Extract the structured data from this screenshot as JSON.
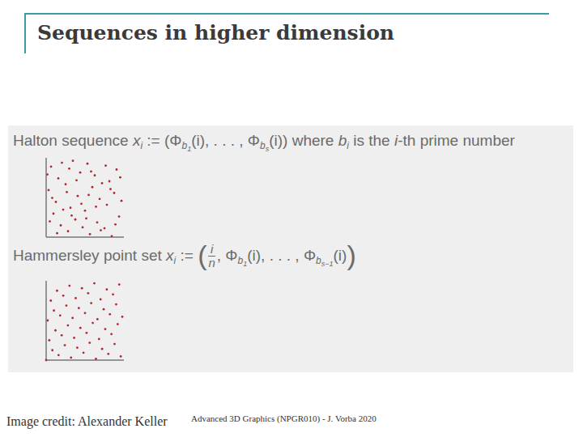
{
  "slide": {
    "title": "Sequences in higher dimension",
    "formulas": [
      {
        "tokens": [
          {
            "text": "Halton sequence "
          },
          {
            "text": "x",
            "italic": true,
            "sub": "i"
          },
          {
            "text": " :="
          },
          {
            "text": " (Φ",
            "sub": "b",
            "sub2": "1"
          },
          {
            "text": "(i), . . . , Φ",
            "sub": "b",
            "sub2": "s"
          },
          {
            "text": "(i))"
          },
          {
            "text": " where "
          },
          {
            "text": "b",
            "italic": true,
            "sub": "i"
          },
          {
            "text": " is the "
          },
          {
            "text": "i",
            "italic": true
          },
          {
            "text": "-th prime number"
          }
        ]
      },
      {
        "tokens": [
          {
            "text": "Hammersley point set "
          },
          {
            "text": "x",
            "italic": true,
            "sub": "i"
          },
          {
            "text": " := "
          },
          {
            "text": "(",
            "big": true
          },
          {
            "num": "i",
            "den": "n"
          },
          {
            "text": ", Φ",
            "sub": "b",
            "sub2": "1"
          },
          {
            "text": "(i), . . . , Φ",
            "sub": "b",
            "sub2": "s−1"
          },
          {
            "text": "(i)"
          },
          {
            "text": ")",
            "big": true
          }
        ]
      }
    ],
    "credit": "Image credit: Alexander Keller",
    "footer": "Advanced 3D Graphics (NPGR010) - J. Vorba 2020"
  },
  "chart_data": [
    {
      "type": "scatter",
      "x": [
        0.5,
        0.25,
        0.75,
        0.125,
        0.625,
        0.375,
        0.875,
        0.063,
        0.563,
        0.313,
        0.813,
        0.188,
        0.688,
        0.438,
        0.938,
        0.031,
        0.531,
        0.281,
        0.781,
        0.156,
        0.656,
        0.406,
        0.906,
        0.094,
        0.594,
        0.344,
        0.844,
        0.219,
        0.719,
        0.469,
        0.969,
        0.016,
        0.516,
        0.266,
        0.766,
        0.141,
        0.641,
        0.391,
        0.891,
        0.078,
        0.578,
        0.328,
        0.828,
        0.203,
        0.703,
        0.453,
        0.953,
        0.047,
        0.547,
        0.297
      ],
      "values": [
        0.333,
        0.667,
        0.111,
        0.444,
        0.778,
        0.222,
        0.556,
        0.889,
        0.037,
        0.37,
        0.704,
        0.148,
        0.481,
        0.815,
        0.259,
        0.593,
        0.926,
        0.074,
        0.407,
        0.741,
        0.185,
        0.519,
        0.852,
        0.296,
        0.63,
        0.963,
        0.012,
        0.346,
        0.679,
        0.123,
        0.457,
        0.79,
        0.235,
        0.568,
        0.901,
        0.049,
        0.383,
        0.716,
        0.16,
        0.494,
        0.827,
        0.272,
        0.605,
        0.938,
        0.086,
        0.42,
        0.753,
        0.198,
        0.531,
        0.864
      ],
      "xlim": [
        0,
        1
      ],
      "ylim": [
        0,
        1
      ],
      "tick_labels": false,
      "color": "#b3252f",
      "marker": "circle"
    },
    {
      "type": "scatter",
      "x": [
        0,
        0.02,
        0.04,
        0.06,
        0.08,
        0.1,
        0.12,
        0.14,
        0.16,
        0.18,
        0.2,
        0.22,
        0.24,
        0.26,
        0.28,
        0.3,
        0.32,
        0.34,
        0.36,
        0.38,
        0.4,
        0.42,
        0.44,
        0.46,
        0.48,
        0.5,
        0.52,
        0.54,
        0.56,
        0.58,
        0.6,
        0.62,
        0.64,
        0.66,
        0.68,
        0.7,
        0.72,
        0.74,
        0.76,
        0.78,
        0.8,
        0.82,
        0.84,
        0.86,
        0.88,
        0.9,
        0.92,
        0.94,
        0.96,
        0.98
      ],
      "values": [
        0,
        0.5,
        0.25,
        0.75,
        0.125,
        0.625,
        0.375,
        0.875,
        0.063,
        0.563,
        0.313,
        0.813,
        0.188,
        0.688,
        0.438,
        0.938,
        0.031,
        0.531,
        0.281,
        0.781,
        0.156,
        0.656,
        0.406,
        0.906,
        0.094,
        0.594,
        0.344,
        0.844,
        0.219,
        0.719,
        0.469,
        0.969,
        0.016,
        0.516,
        0.266,
        0.766,
        0.141,
        0.641,
        0.391,
        0.891,
        0.078,
        0.578,
        0.328,
        0.828,
        0.203,
        0.703,
        0.453,
        0.953,
        0.047,
        0.547
      ],
      "xlim": [
        0,
        1
      ],
      "ylim": [
        0,
        1
      ],
      "tick_labels": false,
      "color": "#b3252f",
      "marker": "circle"
    }
  ]
}
